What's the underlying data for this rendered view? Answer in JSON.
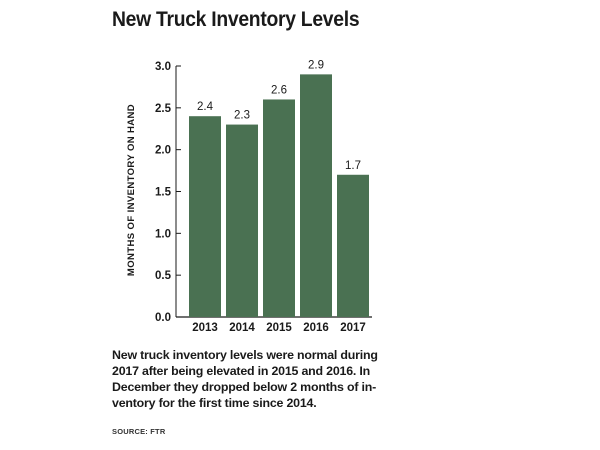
{
  "title": "New Truck Inventory Levels",
  "caption": "New truck inventory levels were normal during 2017 after being elevated in 2015 and 2016. In December they dropped below 2 months of in-ventory for the first time since 2014.",
  "source": "SOURCE: FTR",
  "colors": {
    "bar": "#4a7152",
    "text": "#1a1a1a",
    "axis": "#1a1a1a"
  },
  "chart_data": {
    "type": "bar",
    "title": "New Truck Inventory Levels",
    "xlabel": "",
    "ylabel": "MONTHS OF INVENTORY ON HAND",
    "categories": [
      "2013",
      "2014",
      "2015",
      "2016",
      "2017"
    ],
    "values": [
      2.4,
      2.3,
      2.6,
      2.9,
      1.7
    ],
    "data_labels": [
      "2.4",
      "2.3",
      "2.6",
      "2.9",
      "1.7"
    ],
    "ylim": [
      0,
      3.0
    ],
    "yticks": [
      "0.0",
      "0.5",
      "1.0",
      "1.5",
      "2.0",
      "2.5",
      "3.0"
    ],
    "grid": false,
    "legend": "none"
  }
}
